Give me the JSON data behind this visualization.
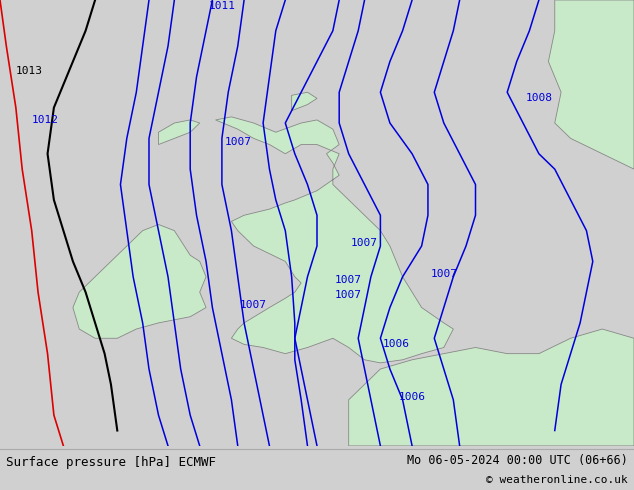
{
  "title_left": "Surface pressure [hPa] ECMWF",
  "title_right": "Mo 06-05-2024 00:00 UTC (06+66)",
  "copyright": "© weatheronline.co.uk",
  "bg_color": "#d0d0d0",
  "land_color": "#c8eac8",
  "land_edge_color": "#888888",
  "sea_color": "#d8d8d8",
  "isobar_blue": "#0000dd",
  "isobar_black": "#000000",
  "isobar_red": "#dd0000",
  "bottom_bg": "#e8e8e8",
  "bottom_text": "#000000",
  "lw_blue": 1.1,
  "lw_black": 1.5,
  "lw_red": 1.2,
  "xlim": [
    -12.5,
    7.5
  ],
  "ylim": [
    48.0,
    62.5
  ],
  "label_fontsize": 8
}
